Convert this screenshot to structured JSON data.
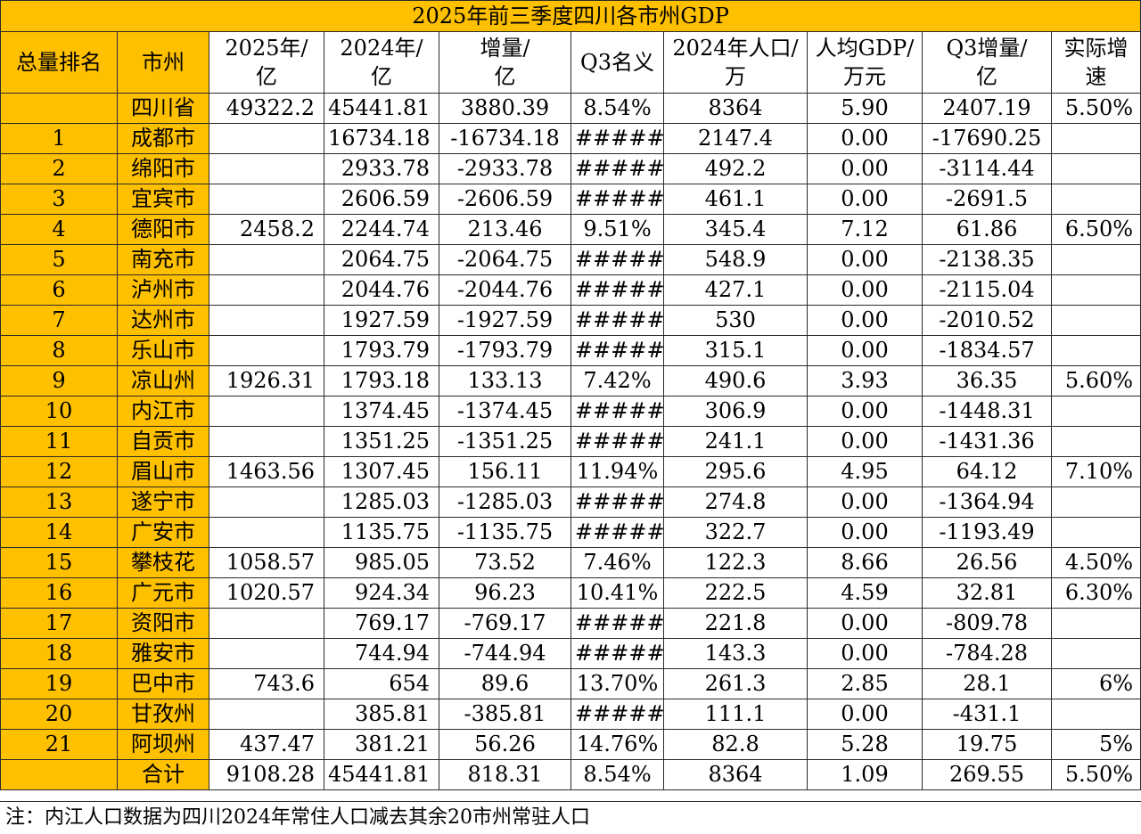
{
  "title": "2025年前三季度四川各市州GDP",
  "headers": [
    "总量排名",
    "市州",
    "2025年/亿",
    "2024年/亿",
    "增量/亿",
    "Q3名义",
    "2024年人口/万",
    "人均GDP/万元",
    "Q3增量/亿",
    "实际增速"
  ],
  "rows": [
    {
      "rank": "",
      "city": "四川省",
      "v2025": "49322.2",
      "v2024": "45441.81",
      "inc": "3880.39",
      "q3n": "8.54%",
      "pop": "8364",
      "pc": "5.90",
      "q3inc": "2407.19",
      "real": "5.50%"
    },
    {
      "rank": "1",
      "city": "成都市",
      "v2025": "",
      "v2024": "16734.18",
      "inc": "-16734.18",
      "q3n": "######",
      "pop": "2147.4",
      "pc": "0.00",
      "q3inc": "-17690.25",
      "real": ""
    },
    {
      "rank": "2",
      "city": "绵阳市",
      "v2025": "",
      "v2024": "2933.78",
      "inc": "-2933.78",
      "q3n": "######",
      "pop": "492.2",
      "pc": "0.00",
      "q3inc": "-3114.44",
      "real": ""
    },
    {
      "rank": "3",
      "city": "宜宾市",
      "v2025": "",
      "v2024": "2606.59",
      "inc": "-2606.59",
      "q3n": "######",
      "pop": "461.1",
      "pc": "0.00",
      "q3inc": "-2691.5",
      "real": ""
    },
    {
      "rank": "4",
      "city": "德阳市",
      "v2025": "2458.2",
      "v2024": "2244.74",
      "inc": "213.46",
      "q3n": "9.51%",
      "pop": "345.4",
      "pc": "7.12",
      "q3inc": "61.86",
      "real": "6.50%"
    },
    {
      "rank": "5",
      "city": "南充市",
      "v2025": "",
      "v2024": "2064.75",
      "inc": "-2064.75",
      "q3n": "######",
      "pop": "548.9",
      "pc": "0.00",
      "q3inc": "-2138.35",
      "real": ""
    },
    {
      "rank": "6",
      "city": "泸州市",
      "v2025": "",
      "v2024": "2044.76",
      "inc": "-2044.76",
      "q3n": "######",
      "pop": "427.1",
      "pc": "0.00",
      "q3inc": "-2115.04",
      "real": ""
    },
    {
      "rank": "7",
      "city": "达州市",
      "v2025": "",
      "v2024": "1927.59",
      "inc": "-1927.59",
      "q3n": "######",
      "pop": "530",
      "pc": "0.00",
      "q3inc": "-2010.52",
      "real": ""
    },
    {
      "rank": "8",
      "city": "乐山市",
      "v2025": "",
      "v2024": "1793.79",
      "inc": "-1793.79",
      "q3n": "######",
      "pop": "315.1",
      "pc": "0.00",
      "q3inc": "-1834.57",
      "real": ""
    },
    {
      "rank": "9",
      "city": "凉山州",
      "v2025": "1926.31",
      "v2024": "1793.18",
      "inc": "133.13",
      "q3n": "7.42%",
      "pop": "490.6",
      "pc": "3.93",
      "q3inc": "36.35",
      "real": "5.60%"
    },
    {
      "rank": "10",
      "city": "内江市",
      "v2025": "",
      "v2024": "1374.45",
      "inc": "-1374.45",
      "q3n": "######",
      "pop": "306.9",
      "pc": "0.00",
      "q3inc": "-1448.31",
      "real": ""
    },
    {
      "rank": "11",
      "city": "自贡市",
      "v2025": "",
      "v2024": "1351.25",
      "inc": "-1351.25",
      "q3n": "######",
      "pop": "241.1",
      "pc": "0.00",
      "q3inc": "-1431.36",
      "real": ""
    },
    {
      "rank": "12",
      "city": "眉山市",
      "v2025": "1463.56",
      "v2024": "1307.45",
      "inc": "156.11",
      "q3n": "11.94%",
      "pop": "295.6",
      "pc": "4.95",
      "q3inc": "64.12",
      "real": "7.10%"
    },
    {
      "rank": "13",
      "city": "遂宁市",
      "v2025": "",
      "v2024": "1285.03",
      "inc": "-1285.03",
      "q3n": "######",
      "pop": "274.8",
      "pc": "0.00",
      "q3inc": "-1364.94",
      "real": ""
    },
    {
      "rank": "14",
      "city": "广安市",
      "v2025": "",
      "v2024": "1135.75",
      "inc": "-1135.75",
      "q3n": "######",
      "pop": "322.7",
      "pc": "0.00",
      "q3inc": "-1193.49",
      "real": ""
    },
    {
      "rank": "15",
      "city": "攀枝花",
      "v2025": "1058.57",
      "v2024": "985.05",
      "inc": "73.52",
      "q3n": "7.46%",
      "pop": "122.3",
      "pc": "8.66",
      "q3inc": "26.56",
      "real": "4.50%"
    },
    {
      "rank": "16",
      "city": "广元市",
      "v2025": "1020.57",
      "v2024": "924.34",
      "inc": "96.23",
      "q3n": "10.41%",
      "pop": "222.5",
      "pc": "4.59",
      "q3inc": "32.81",
      "real": "6.30%"
    },
    {
      "rank": "17",
      "city": "资阳市",
      "v2025": "",
      "v2024": "769.17",
      "inc": "-769.17",
      "q3n": "######",
      "pop": "221.8",
      "pc": "0.00",
      "q3inc": "-809.78",
      "real": ""
    },
    {
      "rank": "18",
      "city": "雅安市",
      "v2025": "",
      "v2024": "744.94",
      "inc": "-744.94",
      "q3n": "######",
      "pop": "143.3",
      "pc": "0.00",
      "q3inc": "-784.28",
      "real": ""
    },
    {
      "rank": "19",
      "city": "巴中市",
      "v2025": "743.6",
      "v2024": "654",
      "inc": "89.6",
      "q3n": "13.70%",
      "pop": "261.3",
      "pc": "2.85",
      "q3inc": "28.1",
      "real": "6%"
    },
    {
      "rank": "20",
      "city": "甘孜州",
      "v2025": "",
      "v2024": "385.81",
      "inc": "-385.81",
      "q3n": "######",
      "pop": "111.1",
      "pc": "0.00",
      "q3inc": "-431.1",
      "real": ""
    },
    {
      "rank": "21",
      "city": "阿坝州",
      "v2025": "437.47",
      "v2024": "381.21",
      "inc": "56.26",
      "q3n": "14.76%",
      "pop": "82.8",
      "pc": "5.28",
      "q3inc": "19.75",
      "real": "5%"
    },
    {
      "rank": "",
      "city": "合计",
      "v2025": "9108.28",
      "v2024": "45441.81",
      "inc": "818.31",
      "q3n": "8.54%",
      "pop": "8364",
      "pc": "1.09",
      "q3inc": "269.55",
      "real": "5.50%"
    }
  ],
  "note": "注：内江人口数据为四川2024年常住人口减去其余20市州常驻人口",
  "colors": {
    "header_fill": "#FFC000",
    "grid": "#2a2a2a",
    "background": "#ffffff"
  }
}
